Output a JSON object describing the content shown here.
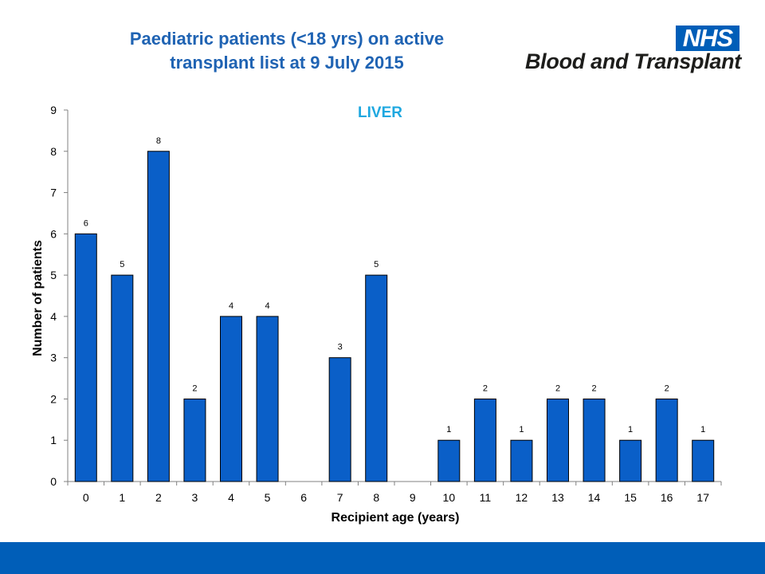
{
  "header": {
    "title_line1": "Paediatric patients (<18 yrs) on active",
    "title_line2": "transplant list at 9 July 2015"
  },
  "logo": {
    "badge": "NHS",
    "org_name": "Blood and Transplant",
    "badge_color": "#005eb8"
  },
  "colors": {
    "bar": "#0a5fc8",
    "title": "#1f63b3",
    "chart_title": "#1fa8e0",
    "footer": "#005eb8"
  },
  "chart_data": {
    "type": "bar",
    "title": "LIVER",
    "xlabel": "Recipient age (years)",
    "ylabel": "Number of patients",
    "categories": [
      "0",
      "1",
      "2",
      "3",
      "4",
      "5",
      "6",
      "7",
      "8",
      "9",
      "10",
      "11",
      "12",
      "13",
      "14",
      "15",
      "16",
      "17"
    ],
    "values": [
      6,
      5,
      8,
      2,
      4,
      4,
      0,
      3,
      5,
      0,
      1,
      2,
      1,
      2,
      2,
      1,
      2,
      1
    ],
    "ylim": [
      0,
      9
    ],
    "yticks": [
      "0",
      "1",
      "2",
      "3",
      "4",
      "5",
      "6",
      "7",
      "8",
      "9"
    ],
    "data_labels": [
      "6",
      "5",
      "8",
      "2",
      "4",
      "4",
      "",
      "3",
      "5",
      "",
      "1",
      "2",
      "1",
      "2",
      "2",
      "1",
      "2",
      "1"
    ],
    "grid": false,
    "legend": "none"
  }
}
